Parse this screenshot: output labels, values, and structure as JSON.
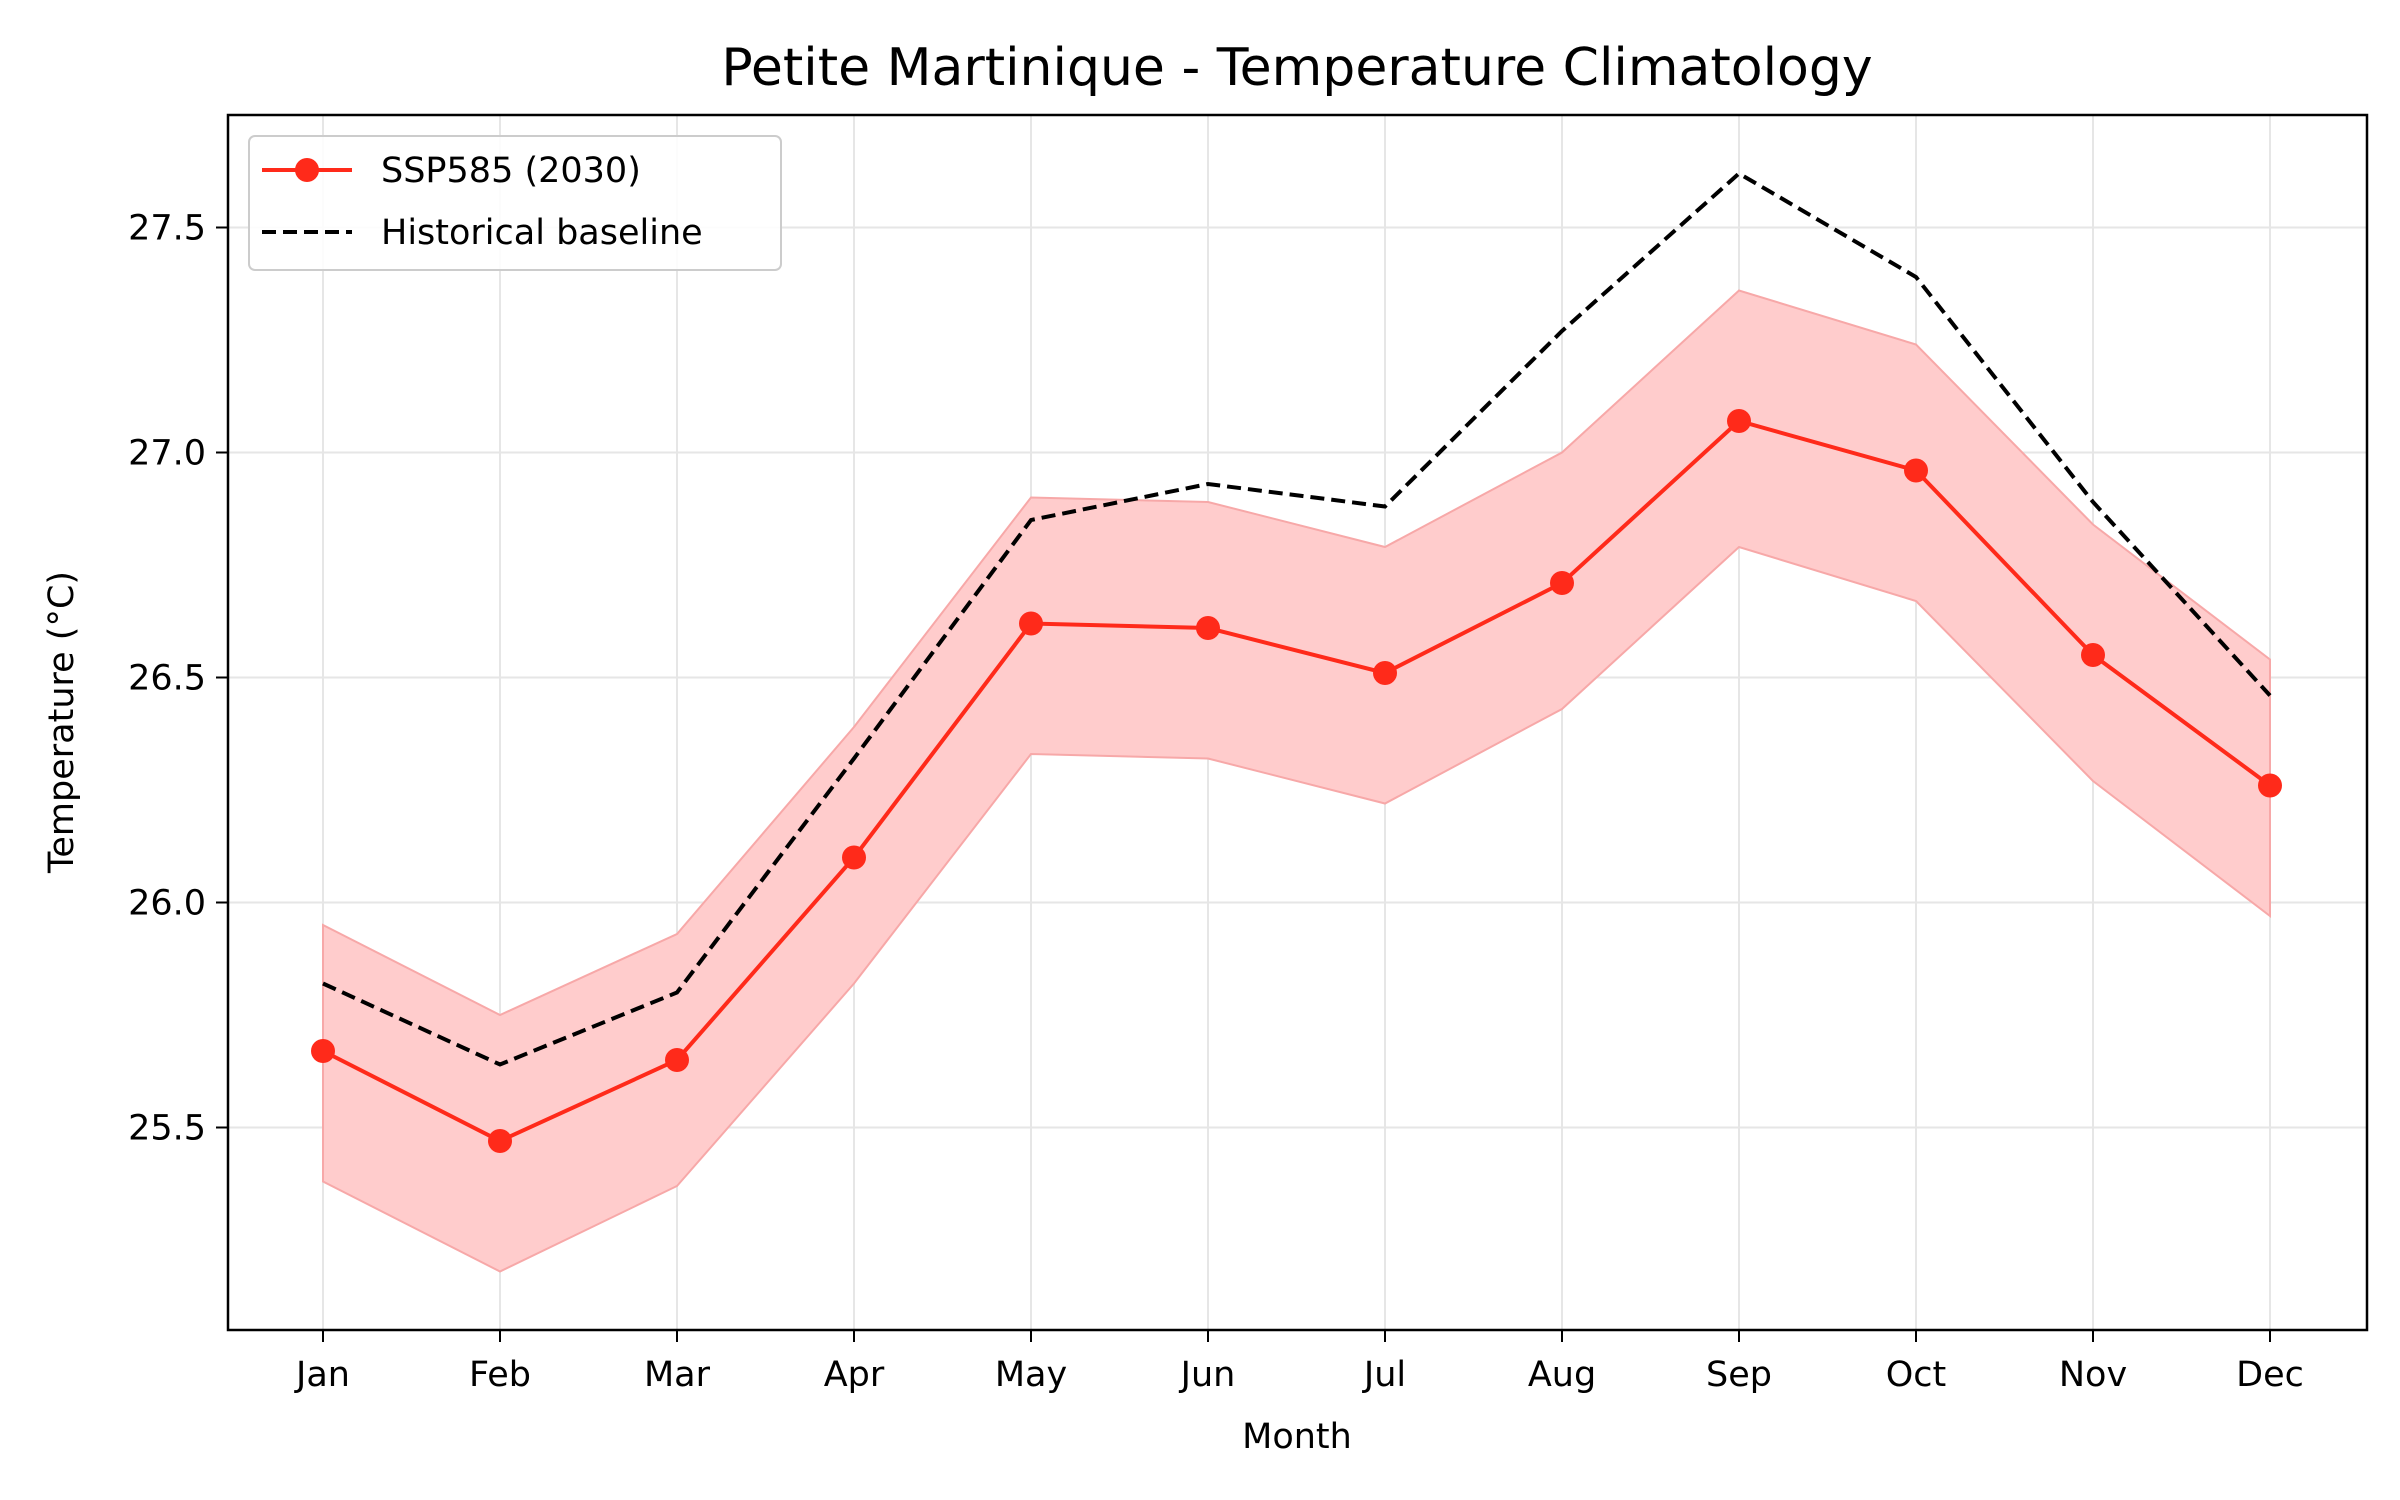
{
  "chart_data": {
    "type": "line",
    "title": "Petite Martinique - Temperature Climatology",
    "xlabel": "Month",
    "ylabel": "Temperature (°C)",
    "categories": [
      "Jan",
      "Feb",
      "Mar",
      "Apr",
      "May",
      "Jun",
      "Jul",
      "Aug",
      "Sep",
      "Oct",
      "Nov",
      "Dec"
    ],
    "ylim": [
      25.05,
      27.75
    ],
    "yticks": [
      25.5,
      26.0,
      26.5,
      27.0,
      27.5
    ],
    "ytick_labels": [
      "25.5",
      "26.0",
      "26.5",
      "27.0",
      "27.5"
    ],
    "grid": true,
    "legend_position": "top-left",
    "series": [
      {
        "name": "SSP585 (2030)",
        "style": "solid-line-with-markers",
        "color": "#ff2a1a",
        "values": [
          25.67,
          25.47,
          25.65,
          26.1,
          26.62,
          26.61,
          26.51,
          26.71,
          27.07,
          26.96,
          26.55,
          26.26
        ],
        "band_upper": [
          25.95,
          25.75,
          25.93,
          26.39,
          26.9,
          26.89,
          26.79,
          27.0,
          27.36,
          27.24,
          26.84,
          26.54
        ],
        "band_lower": [
          25.38,
          25.18,
          25.37,
          25.82,
          26.33,
          26.32,
          26.22,
          26.43,
          26.79,
          26.67,
          26.27,
          25.97
        ],
        "band_color": "#ffcccc"
      },
      {
        "name": "Historical baseline",
        "style": "dashed",
        "color": "#000000",
        "values": [
          25.82,
          25.64,
          25.8,
          26.32,
          26.85,
          26.93,
          26.88,
          27.27,
          27.62,
          27.39,
          26.89,
          26.46
        ]
      }
    ]
  }
}
